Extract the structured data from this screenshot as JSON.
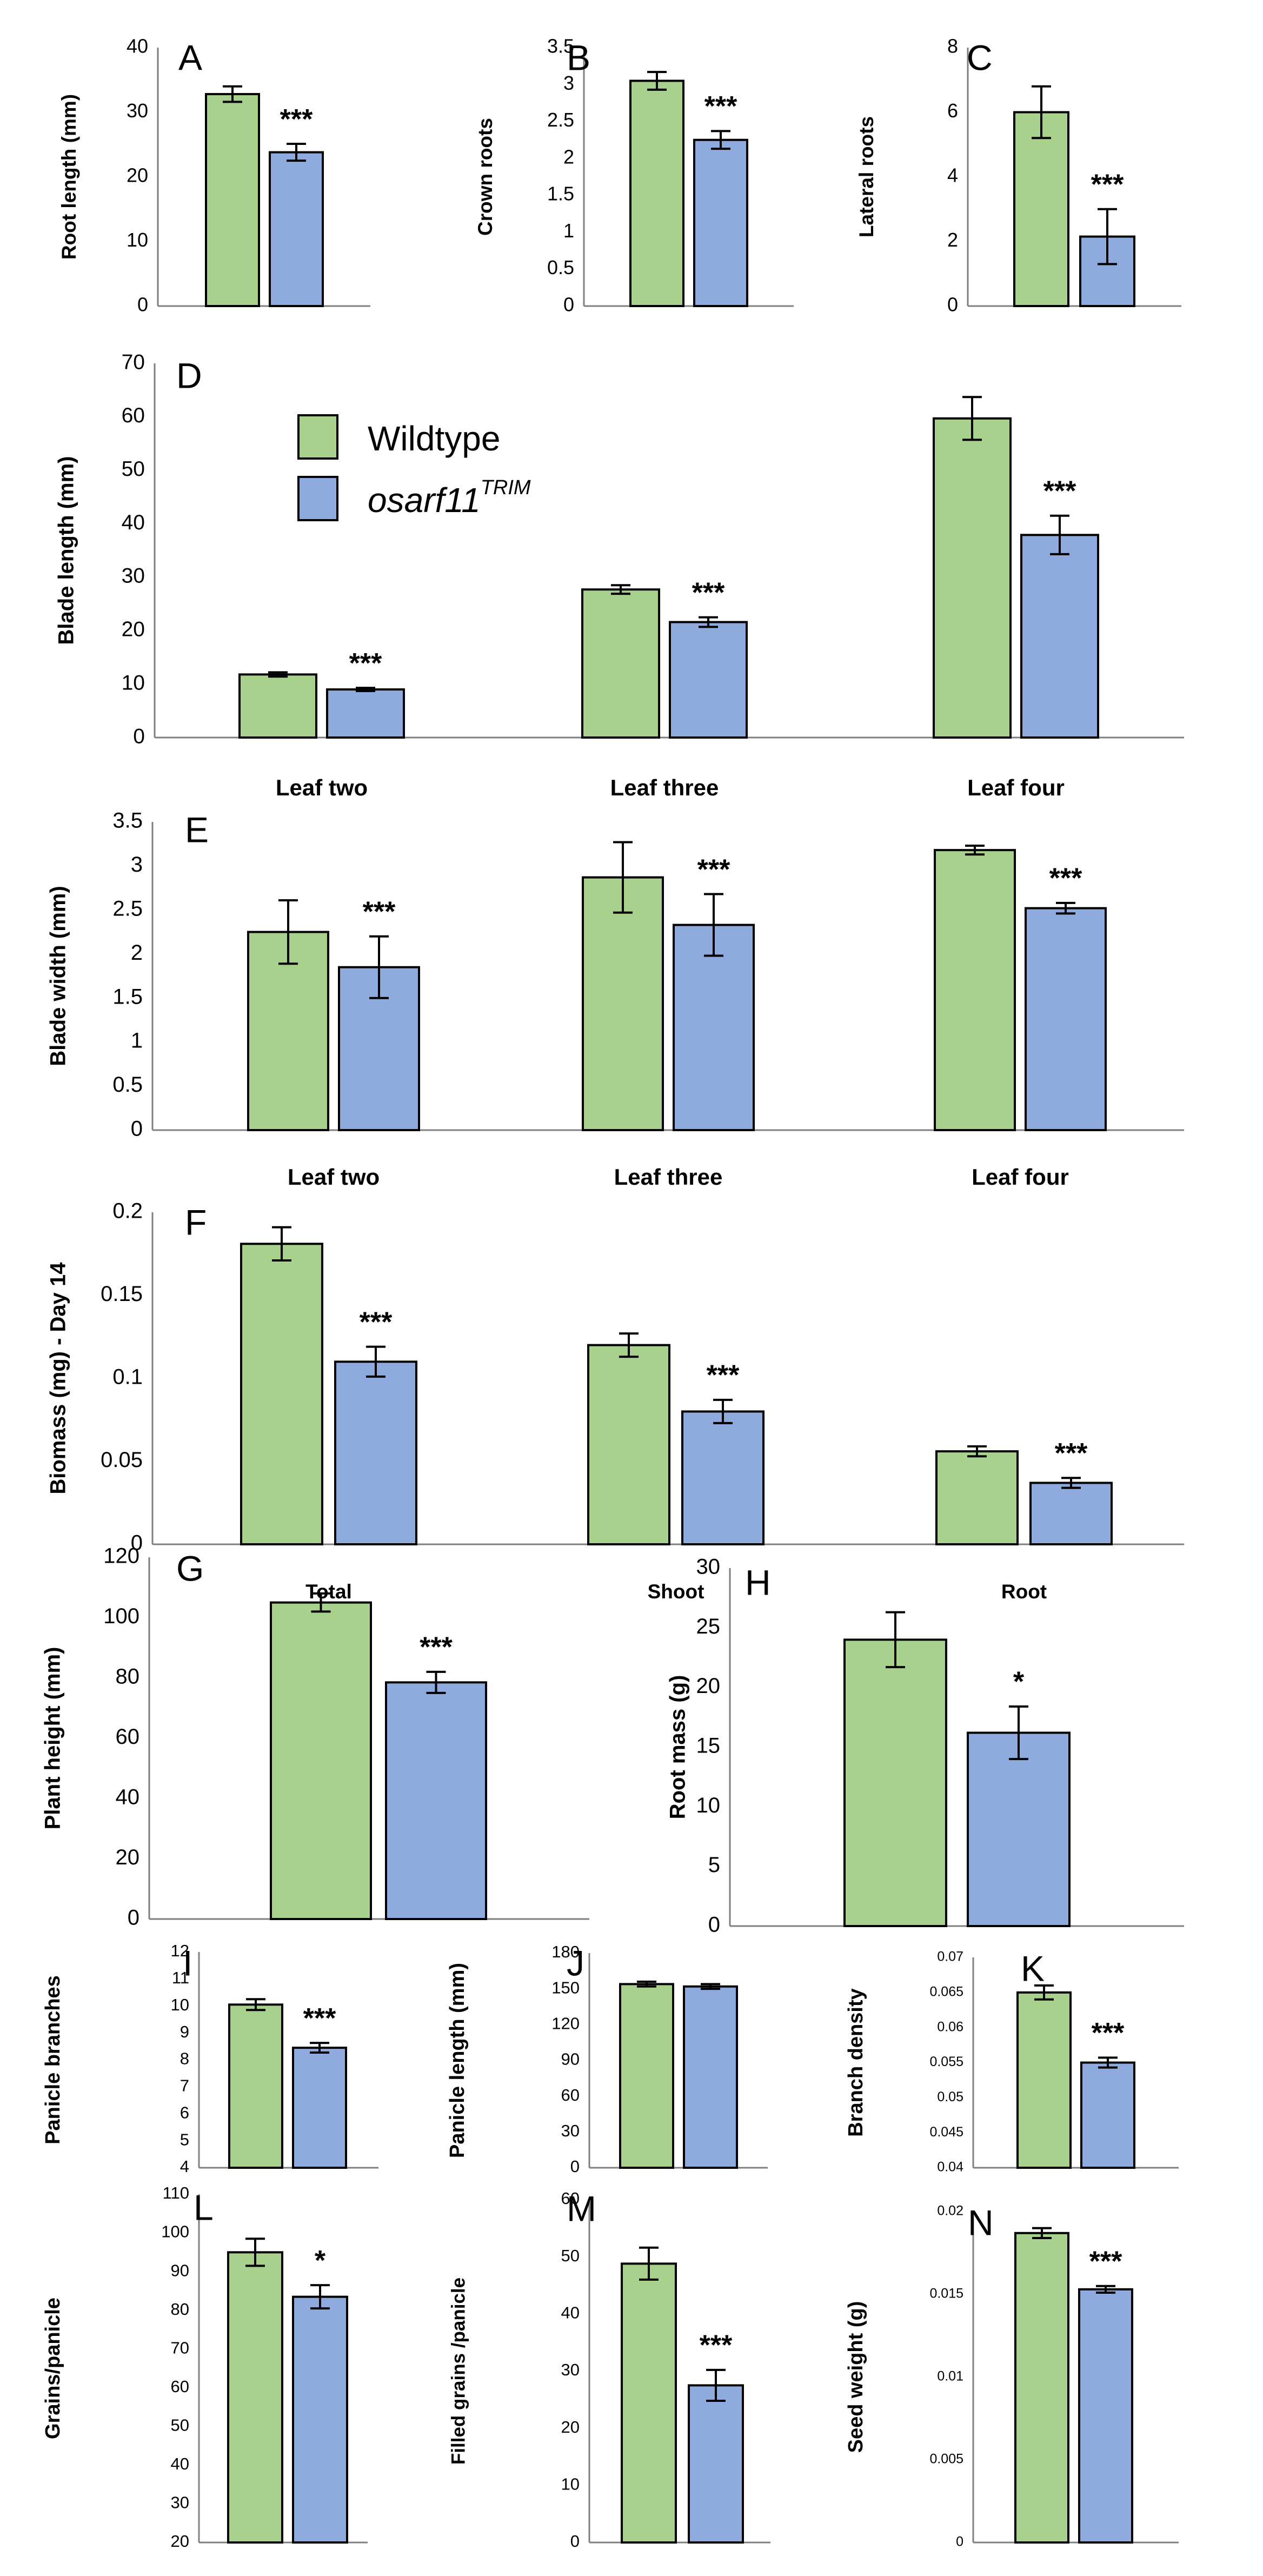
{
  "colors": {
    "wildtype": "#a9d18e",
    "mutant": "#8faadc",
    "outline": "#000000",
    "axis": "#7f7f7f",
    "text": "#000000"
  },
  "legend": {
    "items": [
      {
        "label": "Wildtype",
        "color": "#a9d18e"
      },
      {
        "label": "osarf11",
        "superscript": "TRIM",
        "color": "#8faadc"
      }
    ]
  },
  "chart_data": [
    {
      "id": "A",
      "panel_label": "A",
      "type": "bar",
      "ylabel": "Root length (mm)",
      "ylim": [
        0,
        40
      ],
      "yticks": [
        "0",
        "10",
        "20",
        "30",
        "40"
      ],
      "categories": [
        ""
      ],
      "series": [
        {
          "name": "Wildtype",
          "values": [
            32.8
          ],
          "errors": [
            1.2
          ]
        },
        {
          "name": "osarf11TRIM",
          "values": [
            23.8
          ],
          "errors": [
            1.3
          ]
        }
      ],
      "significance": [
        "***"
      ]
    },
    {
      "id": "B",
      "panel_label": "B",
      "type": "bar",
      "ylabel": "Crown roots",
      "ylim": [
        0,
        3.5
      ],
      "yticks": [
        "0",
        "0.5",
        "1",
        "1.5",
        "2",
        "2.5",
        "3",
        "3.5"
      ],
      "categories": [
        ""
      ],
      "series": [
        {
          "name": "Wildtype",
          "values": [
            3.05
          ],
          "errors": [
            0.12
          ]
        },
        {
          "name": "osarf11TRIM",
          "values": [
            2.25
          ],
          "errors": [
            0.12
          ]
        }
      ],
      "significance": [
        "***"
      ]
    },
    {
      "id": "C",
      "panel_label": "C",
      "type": "bar",
      "ylabel": "Lateral roots",
      "ylim": [
        0,
        8
      ],
      "yticks": [
        "0",
        "2",
        "4",
        "6",
        "8"
      ],
      "categories": [
        ""
      ],
      "series": [
        {
          "name": "Wildtype",
          "values": [
            6.0
          ],
          "errors": [
            0.8
          ]
        },
        {
          "name": "osarf11TRIM",
          "values": [
            2.15
          ],
          "errors": [
            0.85
          ]
        }
      ],
      "significance": [
        "***"
      ]
    },
    {
      "id": "D",
      "panel_label": "D",
      "type": "bar",
      "ylabel": "Blade length (mm)",
      "ylim": [
        0,
        70
      ],
      "yticks": [
        "0",
        "10",
        "20",
        "30",
        "40",
        "50",
        "60",
        "70"
      ],
      "categories": [
        "Leaf two",
        "Leaf three",
        "Leaf four"
      ],
      "series": [
        {
          "name": "Wildtype",
          "values": [
            11.8,
            27.7,
            59.7
          ],
          "errors": [
            0.4,
            0.8,
            4.0
          ]
        },
        {
          "name": "osarf11TRIM",
          "values": [
            9.0,
            21.6,
            37.9
          ],
          "errors": [
            0.3,
            0.9,
            3.6
          ]
        }
      ],
      "significance": [
        "***",
        "***",
        "***"
      ]
    },
    {
      "id": "E",
      "panel_label": "E",
      "type": "bar",
      "ylabel": "Blade width (mm)",
      "ylim": [
        0,
        3.5
      ],
      "yticks": [
        "0",
        "0.5",
        "1",
        "1.5",
        "2",
        "2.5",
        "3",
        "3.5"
      ],
      "categories": [
        "Leaf two",
        "Leaf three",
        "Leaf four"
      ],
      "series": [
        {
          "name": "Wildtype",
          "values": [
            2.25,
            2.87,
            3.18
          ],
          "errors": [
            0.36,
            0.4,
            0.05
          ]
        },
        {
          "name": "osarf11TRIM",
          "values": [
            1.85,
            2.33,
            2.52
          ],
          "errors": [
            0.35,
            0.35,
            0.06
          ]
        }
      ],
      "significance": [
        "***",
        "***",
        "***"
      ]
    },
    {
      "id": "F",
      "panel_label": "F",
      "type": "bar",
      "ylabel": "Biomass (mg) - Day 14",
      "ylim": [
        0,
        0.2
      ],
      "yticks": [
        "0",
        "0.05",
        "0.1",
        "0.15",
        "0.2"
      ],
      "categories": [
        "Total",
        "Shoot",
        "Root"
      ],
      "series": [
        {
          "name": "Wildtype",
          "values": [
            0.181,
            0.12,
            0.056
          ],
          "errors": [
            0.01,
            0.007,
            0.003
          ]
        },
        {
          "name": "osarf11TRIM",
          "values": [
            0.11,
            0.08,
            0.037
          ],
          "errors": [
            0.009,
            0.007,
            0.003
          ]
        }
      ],
      "significance": [
        "***",
        "***",
        "***"
      ]
    },
    {
      "id": "G",
      "panel_label": "G",
      "type": "bar",
      "ylabel": "Plant height (mm)",
      "ylim": [
        0,
        120
      ],
      "yticks": [
        "0",
        "20",
        "40",
        "60",
        "80",
        "100",
        "120"
      ],
      "categories": [
        ""
      ],
      "series": [
        {
          "name": "Wildtype",
          "values": [
            105
          ],
          "errors": [
            3
          ]
        },
        {
          "name": "osarf11TRIM",
          "values": [
            78.5
          ],
          "errors": [
            3.5
          ]
        }
      ],
      "significance": [
        "***"
      ]
    },
    {
      "id": "H",
      "panel_label": "H",
      "type": "bar",
      "ylabel": "Root mass (g)",
      "ylim": [
        0,
        30
      ],
      "yticks": [
        "0",
        "5",
        "10",
        "15",
        "20",
        "25",
        "30"
      ],
      "categories": [
        ""
      ],
      "series": [
        {
          "name": "Wildtype",
          "values": [
            24
          ],
          "errors": [
            2.3
          ]
        },
        {
          "name": "osarf11TRIM",
          "values": [
            16.2
          ],
          "errors": [
            2.2
          ]
        }
      ],
      "significance": [
        "*"
      ]
    },
    {
      "id": "I",
      "panel_label": "I",
      "type": "bar",
      "ylabel": "Panicle branches",
      "ylim": [
        4,
        12
      ],
      "yticks": [
        "4",
        "5",
        "6",
        "7",
        "8",
        "9",
        "10",
        "11",
        "12"
      ],
      "categories": [
        ""
      ],
      "series": [
        {
          "name": "Wildtype",
          "values": [
            10.05
          ],
          "errors": [
            0.2
          ]
        },
        {
          "name": "osarf11TRIM",
          "values": [
            8.45
          ],
          "errors": [
            0.18
          ]
        }
      ],
      "significance": [
        "***"
      ]
    },
    {
      "id": "J",
      "panel_label": "J",
      "type": "bar",
      "ylabel": "Panicle length (mm)",
      "ylim": [
        0,
        180
      ],
      "yticks": [
        "0",
        "30",
        "60",
        "90",
        "120",
        "150",
        "180"
      ],
      "categories": [
        ""
      ],
      "series": [
        {
          "name": "Wildtype",
          "values": [
            154
          ],
          "errors": [
            2
          ]
        },
        {
          "name": "osarf11TRIM",
          "values": [
            152
          ],
          "errors": [
            2
          ]
        }
      ],
      "significance": [
        ""
      ]
    },
    {
      "id": "K",
      "panel_label": "K",
      "type": "bar",
      "ylabel": "Branch density",
      "ylim": [
        0.04,
        0.07
      ],
      "yticks": [
        "0.04",
        "0.045",
        "0.05",
        "0.055",
        "0.06",
        "0.065",
        "0.07"
      ],
      "categories": [
        ""
      ],
      "series": [
        {
          "name": "Wildtype",
          "values": [
            0.065
          ],
          "errors": [
            0.001
          ]
        },
        {
          "name": "osarf11TRIM",
          "values": [
            0.055
          ],
          "errors": [
            0.0007
          ]
        }
      ],
      "significance": [
        "***"
      ]
    },
    {
      "id": "L",
      "panel_label": "L",
      "type": "bar",
      "ylabel": "Grains/panicle",
      "ylim": [
        20,
        110
      ],
      "yticks": [
        "20",
        "30",
        "40",
        "50",
        "60",
        "70",
        "80",
        "90",
        "100",
        "110"
      ],
      "categories": [
        ""
      ],
      "series": [
        {
          "name": "Wildtype",
          "values": [
            95
          ],
          "errors": [
            3.5
          ]
        },
        {
          "name": "osarf11TRIM",
          "values": [
            83.5
          ],
          "errors": [
            3
          ]
        }
      ],
      "significance": [
        "*"
      ]
    },
    {
      "id": "M",
      "panel_label": "M",
      "type": "bar",
      "ylabel": "Filled grains /panicle",
      "ylim": [
        0,
        60
      ],
      "yticks": [
        "0",
        "10",
        "20",
        "30",
        "40",
        "50",
        "60"
      ],
      "categories": [
        ""
      ],
      "series": [
        {
          "name": "Wildtype",
          "values": [
            48.8
          ],
          "errors": [
            2.8
          ]
        },
        {
          "name": "osarf11TRIM",
          "values": [
            27.5
          ],
          "errors": [
            2.7
          ]
        }
      ],
      "significance": [
        "***"
      ]
    },
    {
      "id": "N",
      "panel_label": "N",
      "type": "bar",
      "ylabel": "Seed weight (g)",
      "ylim": [
        0,
        0.02
      ],
      "yticks": [
        "0",
        "0.005",
        "0.01",
        "0.015",
        "0.02"
      ],
      "categories": [
        ""
      ],
      "series": [
        {
          "name": "Wildtype",
          "values": [
            0.0187
          ],
          "errors": [
            0.0003
          ]
        },
        {
          "name": "osarf11TRIM",
          "values": [
            0.0153
          ],
          "errors": [
            0.0002
          ]
        }
      ],
      "significance": [
        "***"
      ]
    }
  ]
}
